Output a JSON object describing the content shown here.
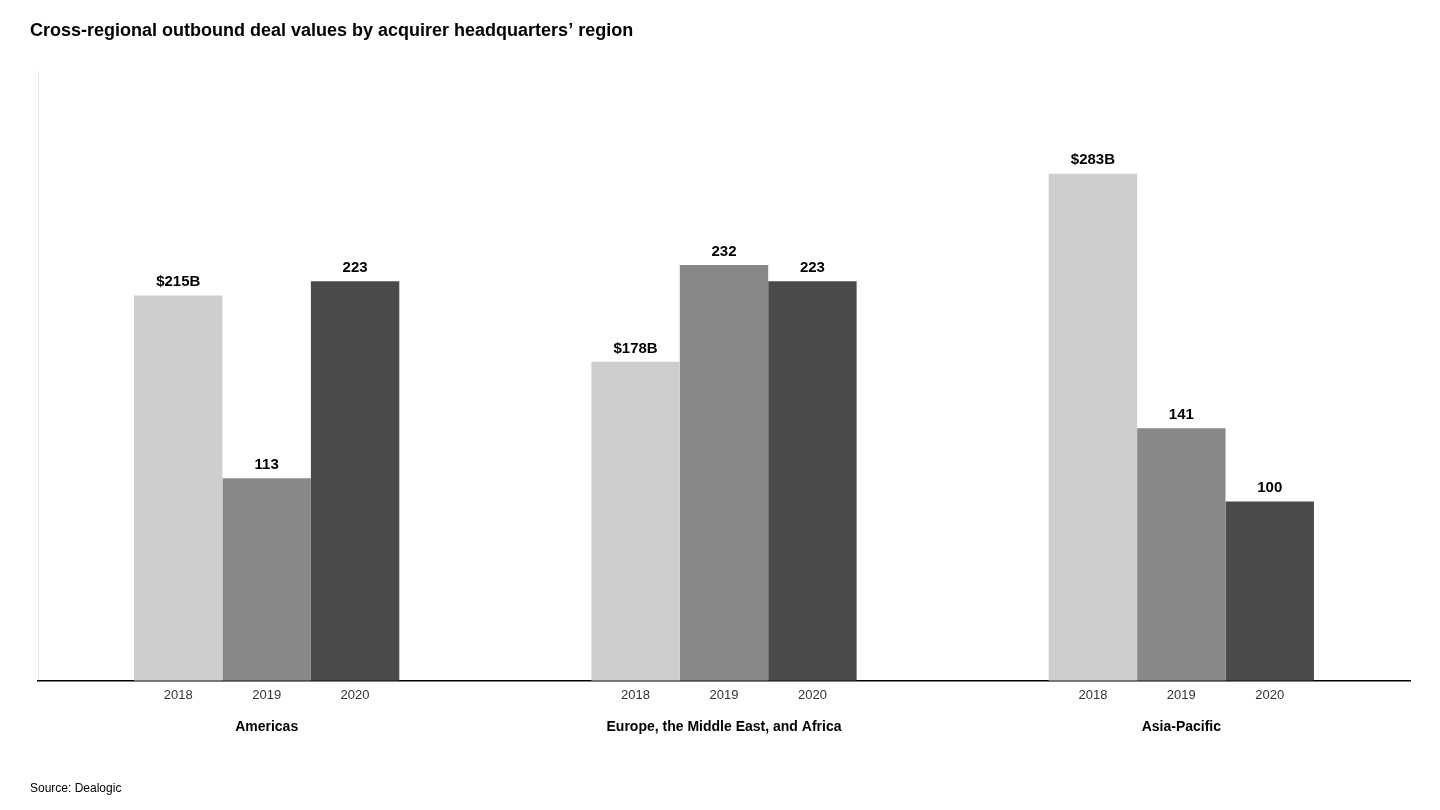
{
  "chart_data": {
    "type": "bar",
    "title": "Cross-regional outbound deal values by acquirer headquarters’ region",
    "annotations": [
      "Source: Dealogic"
    ],
    "categories": [
      "Americas",
      "Europe, the Middle East, and Africa",
      "Asia-Pacific"
    ],
    "series": [
      {
        "name": "2018",
        "color": "#cecece",
        "values": [
          215,
          178,
          283
        ],
        "value_labels": [
          "$215B",
          "$178B",
          "$283B"
        ]
      },
      {
        "name": "2019",
        "color": "#888888",
        "values": [
          113,
          232,
          141
        ],
        "value_labels": [
          "113",
          "232",
          "141"
        ]
      },
      {
        "name": "2020",
        "color": "#4a4a4a",
        "values": [
          223,
          223,
          100
        ],
        "value_labels": [
          "223",
          "223",
          "100"
        ]
      }
    ],
    "ylim": [
      0,
      340
    ],
    "grid": false,
    "data_labels": true,
    "tick_labels": "x"
  }
}
